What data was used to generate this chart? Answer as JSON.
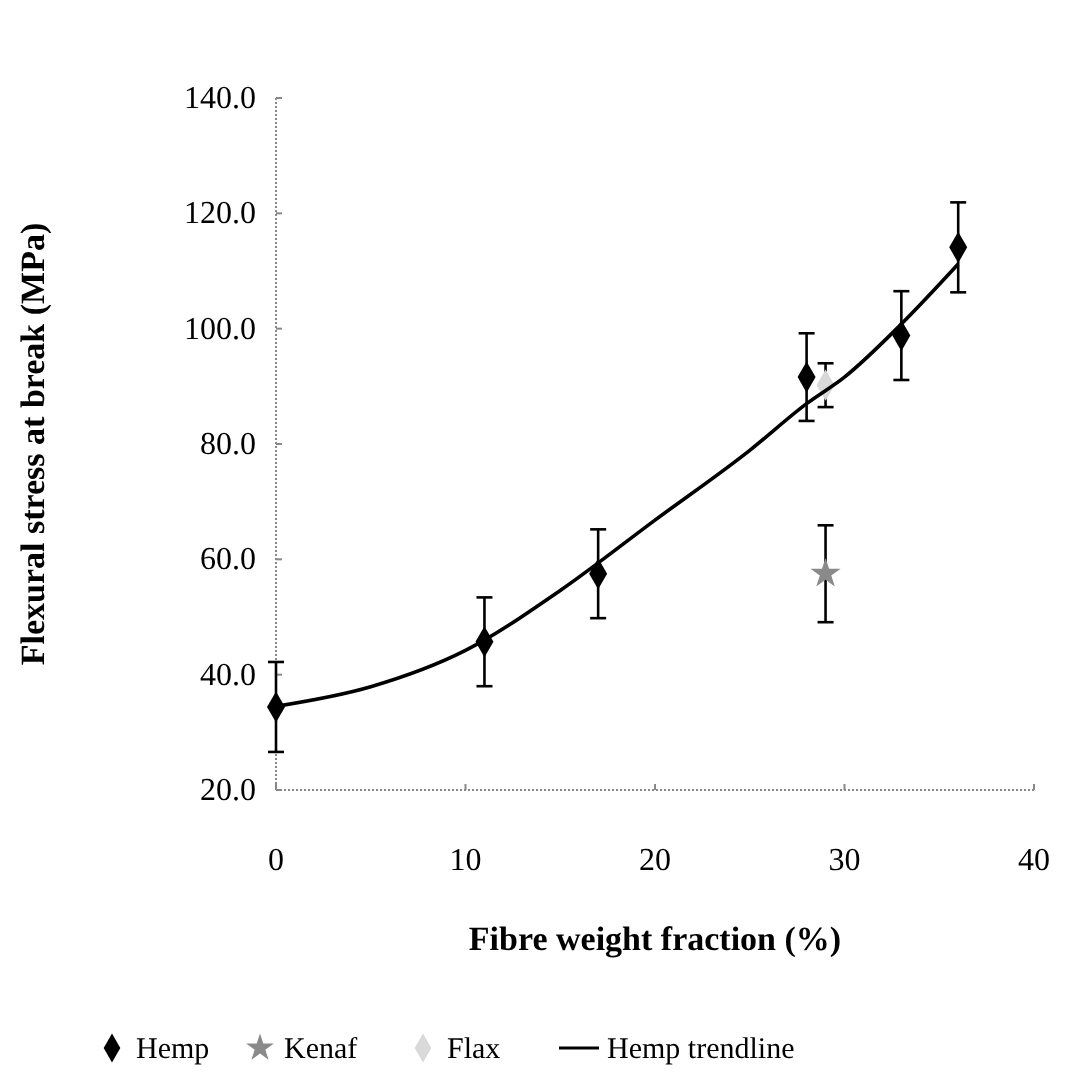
{
  "chart_data": {
    "type": "scatter",
    "xlabel": "Fibre weight fraction (%)",
    "ylabel": "Flexural stress at break (MPa)",
    "xlim": [
      0,
      40
    ],
    "xticks": [
      0,
      10,
      20,
      30,
      40
    ],
    "ylim": [
      20,
      140
    ],
    "yticks": [
      {
        "value": 20,
        "label": "20.0"
      },
      {
        "value": 40,
        "label": "40.0"
      },
      {
        "value": 60,
        "label": "60.0"
      },
      {
        "value": 80,
        "label": "80.0"
      },
      {
        "value": 100,
        "label": "100.0"
      },
      {
        "value": 120,
        "label": "120.0"
      },
      {
        "value": 140,
        "label": "140.0"
      }
    ],
    "grid": false,
    "legend": "bottom",
    "series": [
      {
        "name": "Hemp",
        "color": "#000000",
        "marker": "diamond",
        "x": [
          0,
          11,
          17,
          28,
          33,
          36
        ],
        "values": [
          34.4,
          45.7,
          57.5,
          91.6,
          98.8,
          114.1
        ],
        "errors": [
          7.8,
          7.7,
          7.7,
          7.6,
          7.7,
          7.8
        ]
      },
      {
        "name": "Kenaf",
        "color": "#8a8a8a",
        "marker": "star",
        "x": [
          29
        ],
        "values": [
          57.5
        ],
        "errors": [
          8.4
        ]
      },
      {
        "name": "Flax",
        "color": "#d9d9d9",
        "marker": "diamond",
        "x": [
          29
        ],
        "values": [
          90.2
        ],
        "errors": [
          3.8
        ]
      },
      {
        "name": "Hemp trendline",
        "type": "line",
        "color": "#000000",
        "line_style": "solid",
        "x": [
          0,
          5,
          10,
          15,
          20,
          25,
          28,
          30,
          33,
          36
        ],
        "values": [
          34.5,
          37.9,
          44.2,
          54.6,
          66.8,
          78.9,
          87,
          91.6,
          100.8,
          111.2
        ]
      }
    ]
  }
}
